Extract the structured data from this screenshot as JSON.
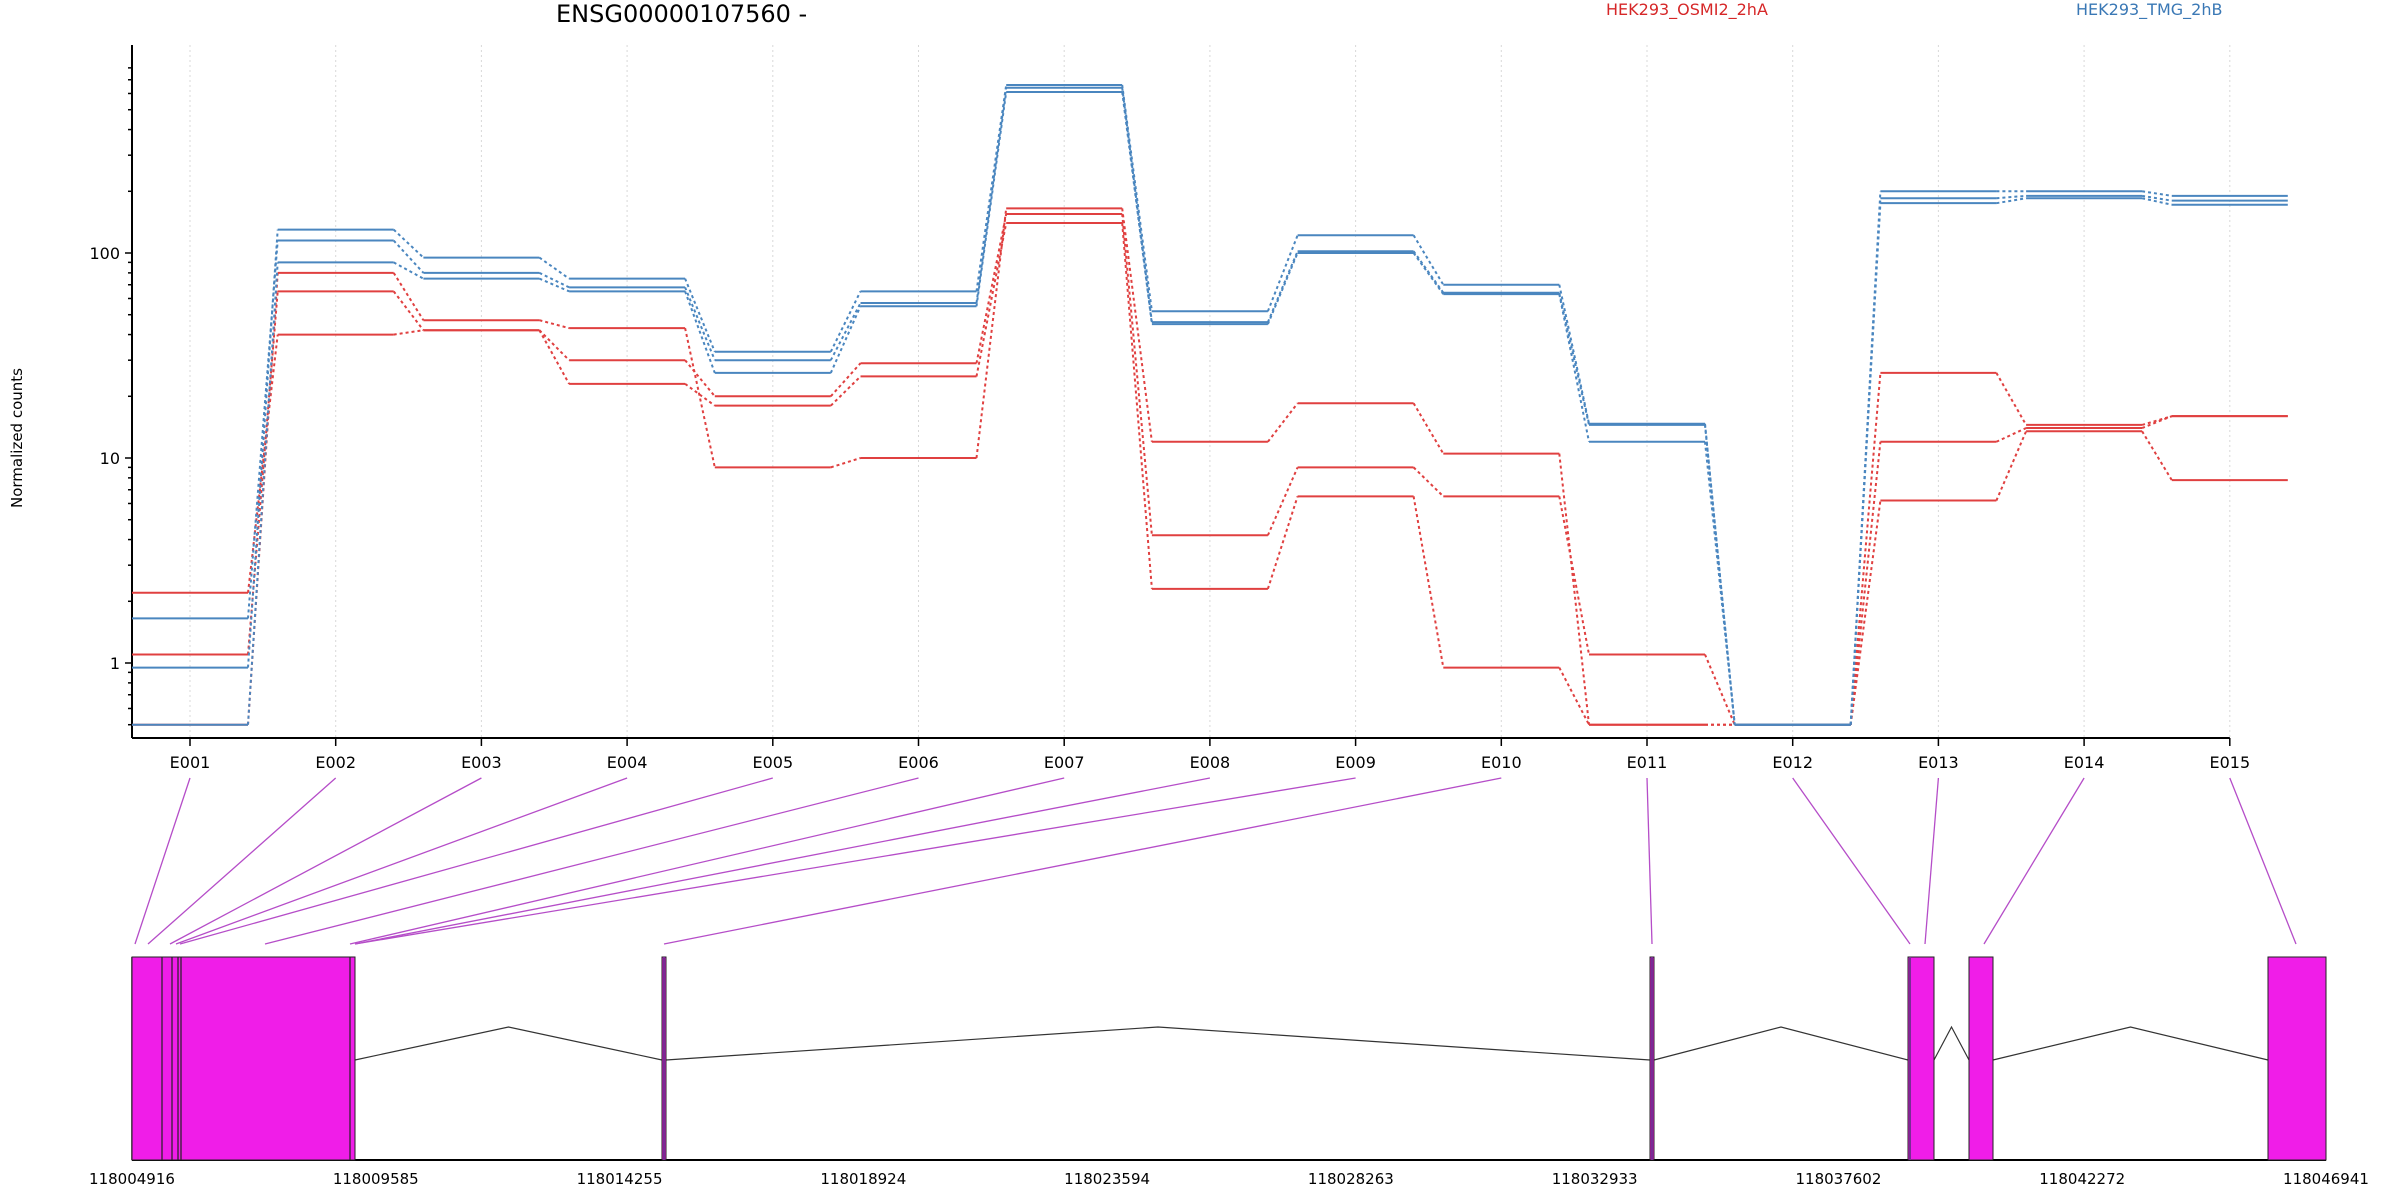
{
  "chart_data": {
    "type": "line",
    "title": "ENSG00000107560 -",
    "ylabel": "Normalized counts",
    "xlabel": "",
    "yscale": "log",
    "ylim": [
      0.5,
      800
    ],
    "yticks": [
      1,
      10,
      100
    ],
    "ytick_labels": [
      "1",
      "10",
      "100"
    ],
    "grid": "vertical dotted",
    "categories": [
      "E001",
      "E002",
      "E003",
      "E004",
      "E005",
      "E006",
      "E007",
      "E008",
      "E009",
      "E010",
      "E011",
      "E012",
      "E013",
      "E014",
      "E015"
    ],
    "groups": [
      {
        "name": "HEK293_OSMI2_2hA",
        "color": "#d62728",
        "line_color": "#e04040"
      },
      {
        "name": "HEK293_TMG_2hB",
        "color": "#3a78b5",
        "line_color": "#4a86bf"
      }
    ],
    "series": [
      {
        "group": 0,
        "values": [
          2.2,
          40,
          42,
          23,
          18,
          25,
          140,
          2.3,
          6.5,
          0.95,
          0.5,
          0.5,
          6.2,
          13.5,
          7.8
        ]
      },
      {
        "group": 0,
        "values": [
          1.1,
          65,
          42,
          30,
          20,
          29,
          155,
          4.2,
          9,
          6.5,
          1.1,
          0.5,
          12,
          14,
          16
        ]
      },
      {
        "group": 0,
        "values": [
          0.5,
          80,
          47,
          43,
          9,
          10,
          165,
          12,
          18.5,
          10.5,
          0.5,
          0.5,
          26,
          14.5,
          16
        ]
      },
      {
        "group": 1,
        "values": [
          0.5,
          90,
          75,
          65,
          26,
          55,
          610,
          45,
          100,
          63,
          12,
          0.5,
          175,
          185,
          172
        ]
      },
      {
        "group": 1,
        "values": [
          1.65,
          115,
          80,
          68,
          30,
          57,
          640,
          46,
          102,
          64,
          14.5,
          0.5,
          185,
          190,
          180
        ]
      },
      {
        "group": 1,
        "values": [
          0.95,
          130,
          95,
          75,
          33,
          65,
          660,
          52,
          122,
          70,
          14.7,
          0.5,
          200,
          200,
          190
        ]
      }
    ],
    "gene_model": {
      "axis_ticks": [
        "118004916",
        "118009585",
        "118014255",
        "118018924",
        "118023594",
        "118028263",
        "118032933",
        "118037602",
        "118042272",
        "118046941"
      ],
      "exon_fill": "#f01de8",
      "connector_color": "#b54dc8"
    }
  }
}
